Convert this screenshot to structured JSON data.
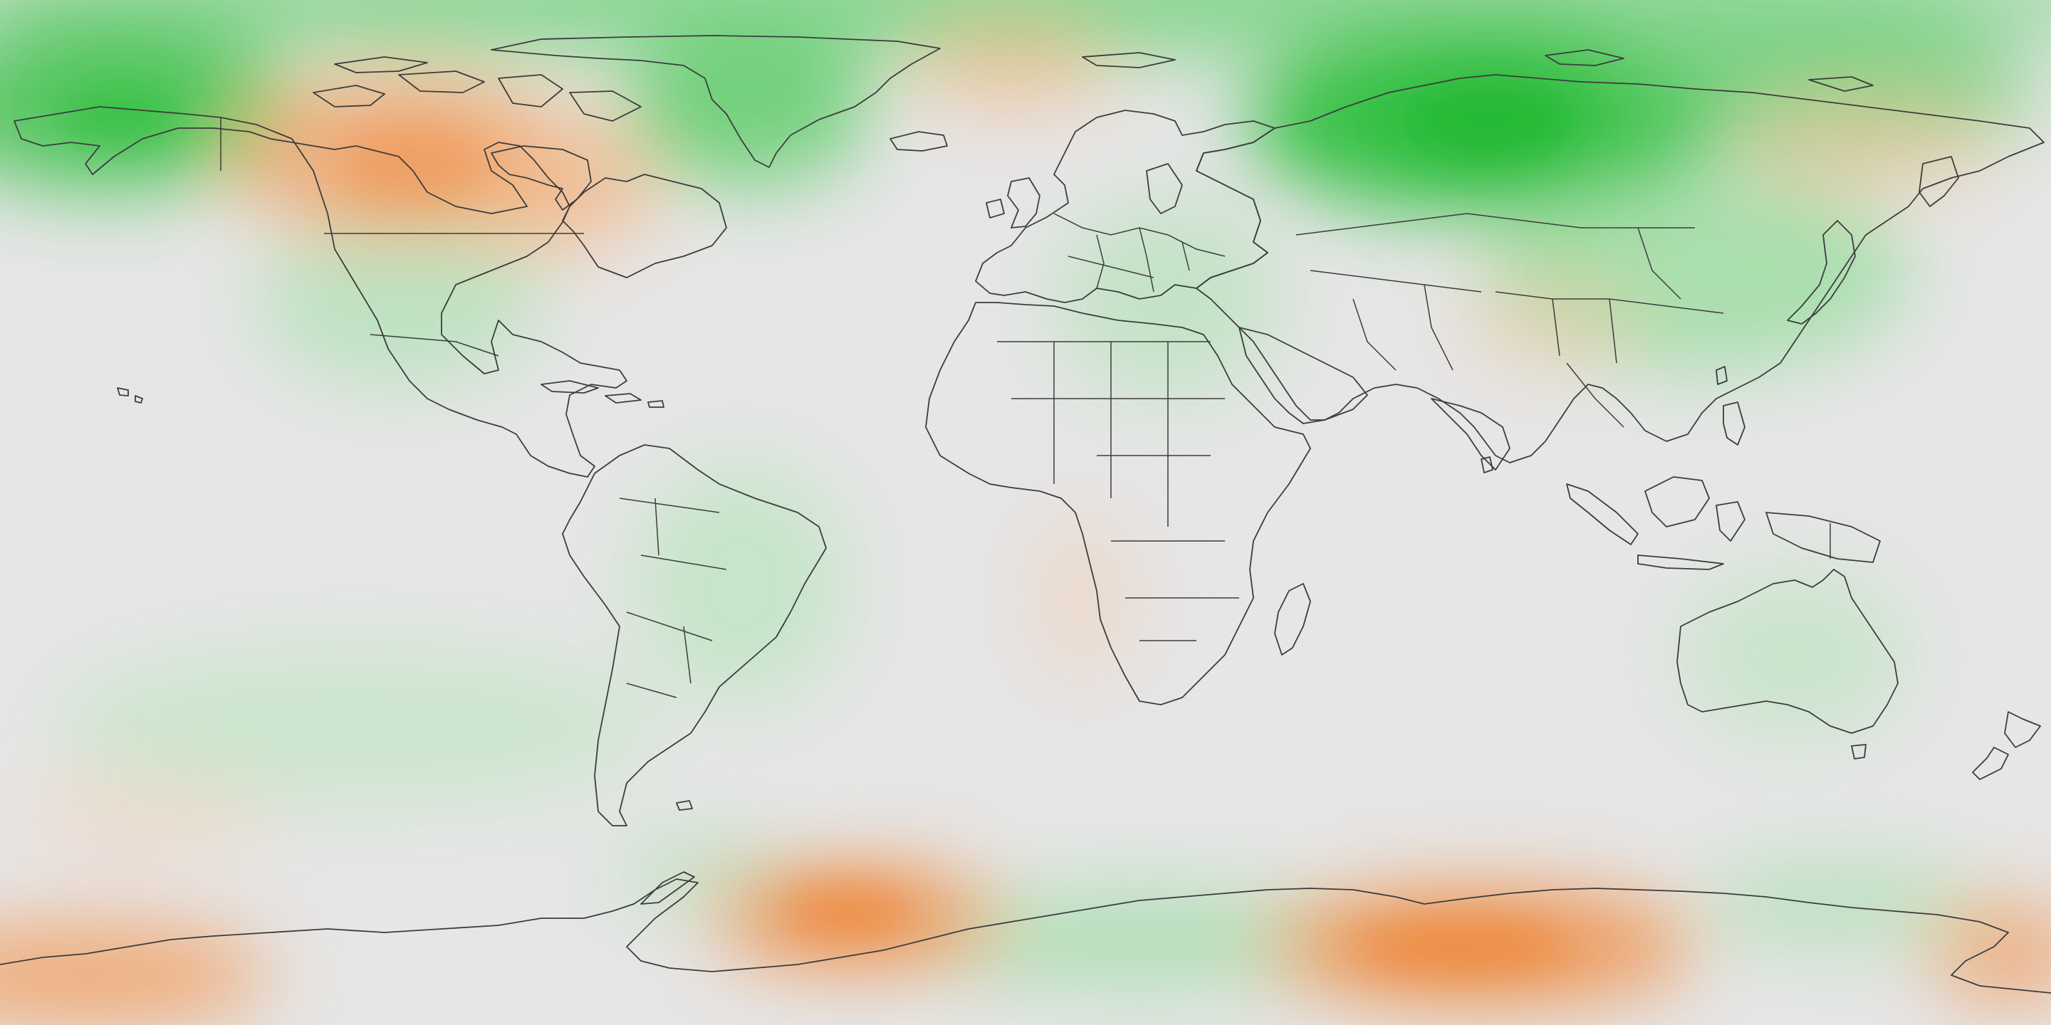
{
  "map": {
    "projection": "equirectangular",
    "extent": {
      "lon": [
        -180,
        180
      ],
      "lat": [
        -90,
        90
      ]
    },
    "colors": {
      "background": "#e6e6e6",
      "positive": "#1fbf2f",
      "negative": "#f08a3c",
      "outline": "#3c3c3c"
    },
    "legend": "none",
    "grid": false
  }
}
